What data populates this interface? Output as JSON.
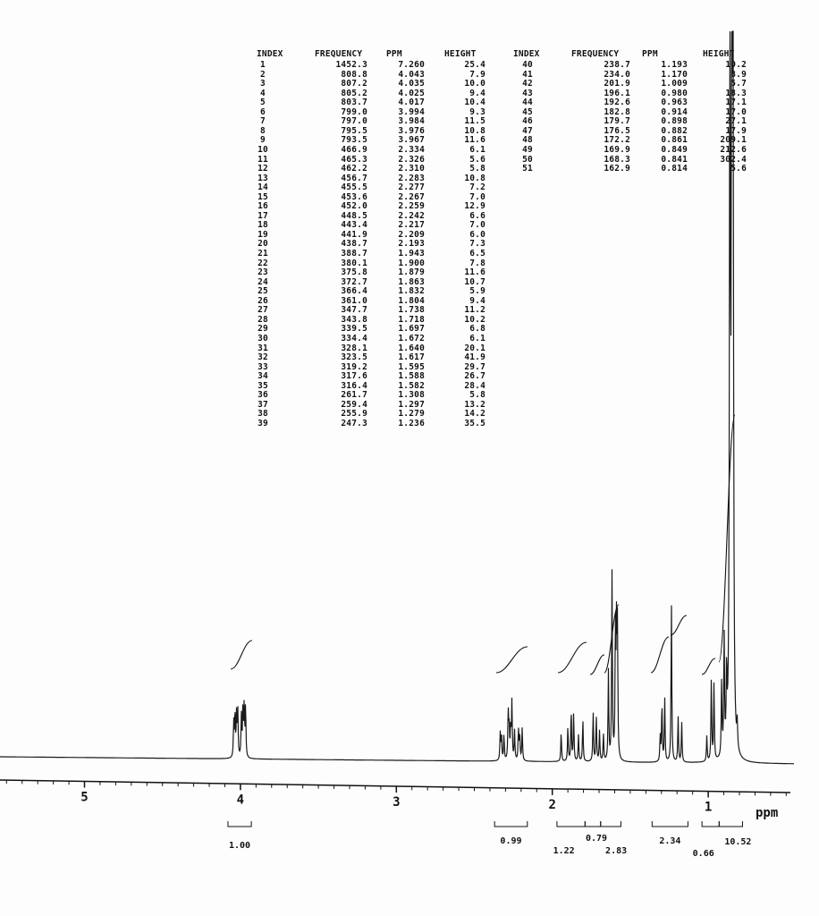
{
  "table_headers": {
    "left": [
      "INDEX",
      "FREQUENCY",
      "PPM",
      "HEIGHT"
    ],
    "right": [
      "INDEX",
      "FREQUENCY",
      "PPM",
      "HEIGHT"
    ]
  },
  "peaks": [
    {
      "index": "1",
      "freq": "1452.3",
      "ppm": "7.260",
      "height": "25.4"
    },
    {
      "index": "2",
      "freq": "808.8",
      "ppm": "4.043",
      "height": "7.9"
    },
    {
      "index": "3",
      "freq": "807.2",
      "ppm": "4.035",
      "height": "10.0"
    },
    {
      "index": "4",
      "freq": "805.2",
      "ppm": "4.025",
      "height": "9.4"
    },
    {
      "index": "5",
      "freq": "803.7",
      "ppm": "4.017",
      "height": "10.4"
    },
    {
      "index": "6",
      "freq": "799.0",
      "ppm": "3.994",
      "height": "9.3"
    },
    {
      "index": "7",
      "freq": "797.0",
      "ppm": "3.984",
      "height": "11.5"
    },
    {
      "index": "8",
      "freq": "795.5",
      "ppm": "3.976",
      "height": "10.8"
    },
    {
      "index": "9",
      "freq": "793.5",
      "ppm": "3.967",
      "height": "11.6"
    },
    {
      "index": "10",
      "freq": "466.9",
      "ppm": "2.334",
      "height": "6.1"
    },
    {
      "index": "11",
      "freq": "465.3",
      "ppm": "2.326",
      "height": "5.6"
    },
    {
      "index": "12",
      "freq": "462.2",
      "ppm": "2.310",
      "height": "5.8"
    },
    {
      "index": "13",
      "freq": "456.7",
      "ppm": "2.283",
      "height": "10.8"
    },
    {
      "index": "14",
      "freq": "455.5",
      "ppm": "2.277",
      "height": "7.2"
    },
    {
      "index": "15",
      "freq": "453.6",
      "ppm": "2.267",
      "height": "7.0"
    },
    {
      "index": "16",
      "freq": "452.0",
      "ppm": "2.259",
      "height": "12.9"
    },
    {
      "index": "17",
      "freq": "448.5",
      "ppm": "2.242",
      "height": "6.6"
    },
    {
      "index": "18",
      "freq": "443.4",
      "ppm": "2.217",
      "height": "7.0"
    },
    {
      "index": "19",
      "freq": "441.9",
      "ppm": "2.209",
      "height": "6.0"
    },
    {
      "index": "20",
      "freq": "438.7",
      "ppm": "2.193",
      "height": "7.3"
    },
    {
      "index": "21",
      "freq": "388.7",
      "ppm": "1.943",
      "height": "6.5"
    },
    {
      "index": "22",
      "freq": "380.1",
      "ppm": "1.900",
      "height": "7.8"
    },
    {
      "index": "23",
      "freq": "375.8",
      "ppm": "1.879",
      "height": "11.6"
    },
    {
      "index": "24",
      "freq": "372.7",
      "ppm": "1.863",
      "height": "10.7"
    },
    {
      "index": "25",
      "freq": "366.4",
      "ppm": "1.832",
      "height": "5.9"
    },
    {
      "index": "26",
      "freq": "361.0",
      "ppm": "1.804",
      "height": "9.4"
    },
    {
      "index": "27",
      "freq": "347.7",
      "ppm": "1.738",
      "height": "11.2"
    },
    {
      "index": "28",
      "freq": "343.8",
      "ppm": "1.718",
      "height": "10.2"
    },
    {
      "index": "29",
      "freq": "339.5",
      "ppm": "1.697",
      "height": "6.8"
    },
    {
      "index": "30",
      "freq": "334.4",
      "ppm": "1.672",
      "height": "6.1"
    },
    {
      "index": "31",
      "freq": "328.1",
      "ppm": "1.640",
      "height": "20.1"
    },
    {
      "index": "32",
      "freq": "323.5",
      "ppm": "1.617",
      "height": "41.9"
    },
    {
      "index": "33",
      "freq": "319.2",
      "ppm": "1.595",
      "height": "29.7"
    },
    {
      "index": "34",
      "freq": "317.6",
      "ppm": "1.588",
      "height": "26.7"
    },
    {
      "index": "35",
      "freq": "316.4",
      "ppm": "1.582",
      "height": "28.4"
    },
    {
      "index": "36",
      "freq": "261.7",
      "ppm": "1.308",
      "height": "5.8"
    },
    {
      "index": "37",
      "freq": "259.4",
      "ppm": "1.297",
      "height": "13.2"
    },
    {
      "index": "38",
      "freq": "255.9",
      "ppm": "1.279",
      "height": "14.2"
    },
    {
      "index": "39",
      "freq": "247.3",
      "ppm": "1.236",
      "height": "35.5"
    },
    {
      "index": "40",
      "freq": "238.7",
      "ppm": "1.193",
      "height": "10.2"
    },
    {
      "index": "41",
      "freq": "234.0",
      "ppm": "1.170",
      "height": "8.9"
    },
    {
      "index": "42",
      "freq": "201.9",
      "ppm": "1.009",
      "height": "5.7"
    },
    {
      "index": "43",
      "freq": "196.1",
      "ppm": "0.980",
      "height": "18.3"
    },
    {
      "index": "44",
      "freq": "192.6",
      "ppm": "0.963",
      "height": "17.1"
    },
    {
      "index": "45",
      "freq": "182.8",
      "ppm": "0.914",
      "height": "17.0"
    },
    {
      "index": "46",
      "freq": "179.7",
      "ppm": "0.898",
      "height": "27.1"
    },
    {
      "index": "47",
      "freq": "176.5",
      "ppm": "0.882",
      "height": "17.9"
    },
    {
      "index": "48",
      "freq": "172.2",
      "ppm": "0.861",
      "height": "209.1"
    },
    {
      "index": "49",
      "freq": "169.9",
      "ppm": "0.849",
      "height": "212.6"
    },
    {
      "index": "50",
      "freq": "168.3",
      "ppm": "0.841",
      "height": "302.4"
    },
    {
      "index": "51",
      "freq": "162.9",
      "ppm": "0.814",
      "height": "5.6"
    }
  ],
  "chart_data": {
    "type": "line",
    "xlabel": "ppm",
    "x_reversed": true,
    "xlim": [
      5.5,
      0.5
    ],
    "xticks": [
      "5",
      "4",
      "3",
      "2",
      "1"
    ],
    "integrals": [
      {
        "label": "1.00",
        "from": 4.08,
        "to": 3.93
      },
      {
        "label": "0.99",
        "from": 2.37,
        "to": 2.16
      },
      {
        "label": "1.22",
        "from": 1.97,
        "to": 1.79
      },
      {
        "label": "0.79",
        "from": 1.79,
        "to": 1.69
      },
      {
        "label": "2.83",
        "from": 1.69,
        "to": 1.56
      },
      {
        "label": "2.34",
        "from": 1.36,
        "to": 1.13
      },
      {
        "label": "0.66",
        "from": 1.04,
        "to": 0.93
      },
      {
        "label": "10.52",
        "from": 0.93,
        "to": 0.78
      }
    ]
  }
}
